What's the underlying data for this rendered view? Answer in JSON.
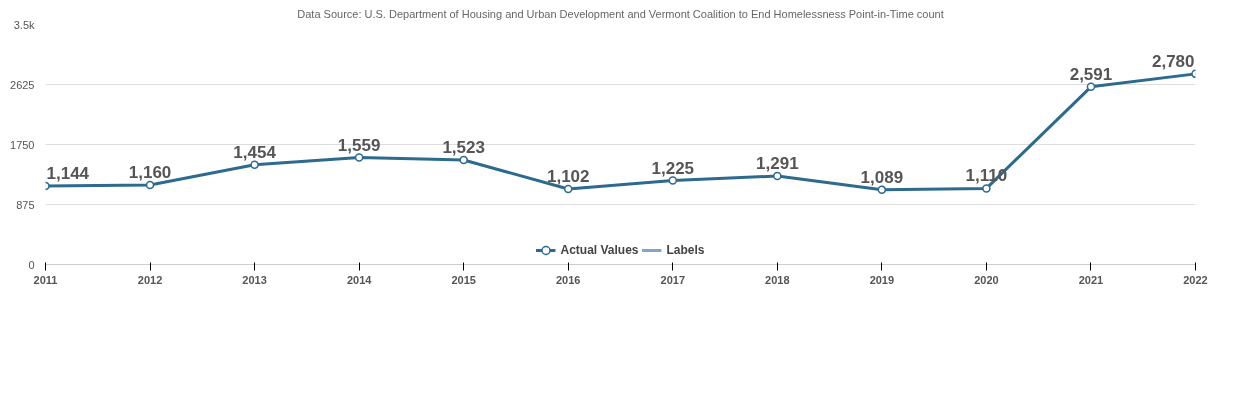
{
  "chart_data": {
    "type": "line",
    "title": "Data Source: U.S. Department of Housing and Urban Development and Vermont Coalition to End Homelessness Point-in-Time count",
    "x": [
      2011,
      2012,
      2013,
      2014,
      2015,
      2016,
      2017,
      2018,
      2019,
      2020,
      2021,
      2022
    ],
    "series": [
      {
        "name": "Actual Values",
        "color": "#2e6a8e",
        "values": [
          1144,
          1160,
          1454,
          1559,
          1523,
          1102,
          1225,
          1291,
          1089,
          1110,
          2591,
          2780
        ],
        "value_labels": [
          "1,144",
          "1,160",
          "1,454",
          "1,559",
          "1,523",
          "1,102",
          "1,225",
          "1,291",
          "1,089",
          "1,110",
          "2,591",
          "2,780"
        ]
      },
      {
        "name": "Labels",
        "color": "#7fa6c6",
        "marker": "none",
        "values": [
          null,
          null,
          null,
          null,
          null,
          null,
          null,
          null,
          null,
          null,
          null,
          null
        ]
      }
    ],
    "xlim": [
      2011,
      2022
    ],
    "xticks": [
      2011,
      2012,
      2013,
      2014,
      2015,
      2016,
      2017,
      2018,
      2019,
      2020,
      2021,
      2022
    ],
    "ylim": [
      0,
      3500
    ],
    "yticks": [
      0,
      875,
      1750,
      2625,
      {
        "value": 3500,
        "label": "3.5k"
      }
    ],
    "grid": "y",
    "legend": "bottom",
    "marker": "circle"
  }
}
